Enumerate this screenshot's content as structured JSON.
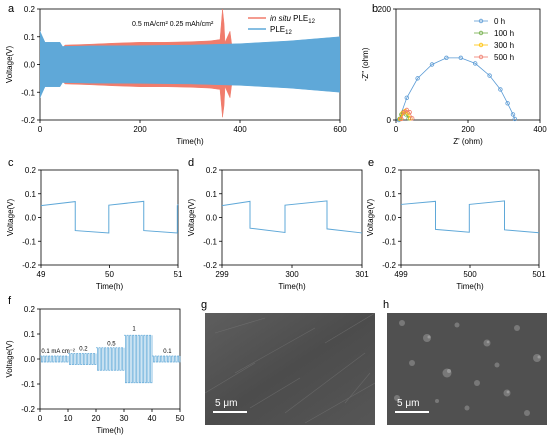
{
  "chart_data": [
    {
      "panel": "a",
      "type": "line",
      "xlabel": "Time(h)",
      "ylabel": "Voltage(V)",
      "xlim": [
        0,
        600
      ],
      "ylim": [
        -0.2,
        0.2
      ],
      "xticks": [
        "0",
        "200",
        "400",
        "600"
      ],
      "yticks": [
        "-0.2",
        "-0.1",
        "0.0",
        "0.1",
        "0.2"
      ],
      "annotation": "0.5 mA/cm² 0.25 mAh/cm²",
      "legend_position": "top-right",
      "series": [
        {
          "name": "in situ PLE12",
          "name_italic": "in situ",
          "name_main": "PLE",
          "name_sub": "12",
          "color": "#f07c6c",
          "envelope": {
            "x": [
              0,
              45,
              50,
              100,
              150,
              200,
              250,
              300,
              340,
              360,
              365,
              368,
              370,
              380,
              385
            ],
            "upper": [
              0.05,
              0.06,
              0.07,
              0.073,
              0.077,
              0.08,
              0.08,
              0.082,
              0.085,
              0.09,
              0.2,
              0.15,
              0.08,
              0.12,
              0.05
            ],
            "lower": [
              -0.05,
              -0.06,
              -0.07,
              -0.073,
              -0.077,
              -0.08,
              -0.08,
              -0.082,
              -0.085,
              -0.09,
              -0.19,
              -0.15,
              -0.08,
              -0.12,
              -0.05
            ]
          }
        },
        {
          "name": "PLE12",
          "name_main": "PLE",
          "name_sub": "12",
          "color": "#5fa8d8",
          "envelope": {
            "x": [
              0,
              10,
              40,
              45,
              100,
              200,
              300,
              400,
              500,
              600
            ],
            "upper": [
              0.12,
              0.08,
              0.08,
              0.065,
              0.067,
              0.068,
              0.07,
              0.075,
              0.085,
              0.1
            ],
            "lower": [
              -0.12,
              -0.08,
              -0.08,
              -0.065,
              -0.067,
              -0.068,
              -0.07,
              -0.075,
              -0.085,
              -0.1
            ]
          }
        }
      ]
    },
    {
      "panel": "b",
      "type": "scatter",
      "xlabel": "Z' (ohm)",
      "ylabel": "-Z'' (ohm)",
      "xlim": [
        0,
        400
      ],
      "ylim": [
        0,
        200
      ],
      "xticks": [
        "0",
        "200",
        "400"
      ],
      "yticks": [
        "0",
        "200"
      ],
      "legend_position": "top-right",
      "series": [
        {
          "name": "0 h",
          "color": "#5b9bd5",
          "x": [
            8,
            30,
            60,
            100,
            140,
            180,
            220,
            260,
            290,
            310,
            325,
            330
          ],
          "y": [
            0,
            40,
            75,
            100,
            112,
            112,
            102,
            80,
            55,
            30,
            10,
            2
          ]
        },
        {
          "name": "100 h",
          "color": "#70ad47",
          "x": [
            10,
            15,
            20,
            28,
            35
          ],
          "y": [
            2,
            10,
            14,
            10,
            3
          ]
        },
        {
          "name": "300 h",
          "color": "#ffc000",
          "x": [
            12,
            18,
            25,
            33,
            40
          ],
          "y": [
            2,
            12,
            16,
            12,
            3
          ]
        },
        {
          "name": "500 h",
          "color": "#f07c6c",
          "x": [
            15,
            22,
            30,
            38,
            45
          ],
          "y": [
            2,
            14,
            18,
            14,
            3
          ]
        }
      ]
    },
    {
      "panel": "c",
      "type": "line",
      "xlabel": "Time(h)",
      "ylabel": "Voltage(V)",
      "xlim": [
        49,
        51
      ],
      "ylim": [
        -0.2,
        0.2
      ],
      "xticks": [
        "49",
        "50",
        "51"
      ],
      "yticks": [
        "-0.2",
        "-0.1",
        "0.0",
        "0.1",
        "0.2"
      ],
      "series": [
        {
          "name": "",
          "color": "#5fa8d8",
          "x": [
            49,
            49.5,
            49.5,
            49.99,
            49.99,
            50.5,
            50.5,
            50.99,
            50.99,
            51
          ],
          "y": [
            0.05,
            0.067,
            -0.055,
            -0.065,
            0.052,
            0.068,
            -0.055,
            -0.065,
            0.05,
            0.055
          ]
        }
      ]
    },
    {
      "panel": "d",
      "type": "line",
      "xlabel": "Time(h)",
      "ylabel": "Voltage(V)",
      "xlim": [
        299,
        301
      ],
      "ylim": [
        -0.2,
        0.2
      ],
      "xticks": [
        "299",
        "300",
        "301"
      ],
      "yticks": [
        "-0.2",
        "-0.1",
        "0.0",
        "0.1",
        "0.2"
      ],
      "series": [
        {
          "name": "",
          "color": "#5fa8d8",
          "x": [
            299,
            299.4,
            299.4,
            299.9,
            299.9,
            300.5,
            300.5,
            301
          ],
          "y": [
            0.05,
            0.068,
            -0.045,
            -0.063,
            0.052,
            0.07,
            -0.048,
            -0.065
          ]
        }
      ]
    },
    {
      "panel": "e",
      "type": "line",
      "xlabel": "Time(h)",
      "ylabel": "Voltage(V)",
      "xlim": [
        499,
        501
      ],
      "ylim": [
        -0.2,
        0.2
      ],
      "xticks": [
        "499",
        "500",
        "501"
      ],
      "yticks": [
        "-0.2",
        "-0.1",
        "0.0",
        "0.1",
        "0.2"
      ],
      "series": [
        {
          "name": "",
          "color": "#5fa8d8",
          "x": [
            499,
            499.5,
            499.5,
            499.99,
            499.99,
            500.5,
            500.5,
            501
          ],
          "y": [
            0.055,
            0.068,
            -0.05,
            -0.062,
            0.055,
            0.07,
            -0.052,
            -0.064
          ]
        }
      ]
    },
    {
      "panel": "f",
      "type": "line",
      "xlabel": "Time(h)",
      "ylabel": "Voltage(V)",
      "xlim": [
        0,
        50
      ],
      "ylim": [
        -0.2,
        0.2
      ],
      "xticks": [
        "0",
        "10",
        "20",
        "30",
        "40",
        "50"
      ],
      "yticks": [
        "-0.2",
        "-0.1",
        "0.0",
        "0.1",
        "0.2"
      ],
      "annotations": [
        {
          "text": "0.1 mA cm⁻²",
          "x": 0.5,
          "y": 0.025
        },
        {
          "text": "0.2",
          "x": 14,
          "y": 0.035
        },
        {
          "text": "0.5",
          "x": 24,
          "y": 0.055
        },
        {
          "text": "1",
          "x": 33,
          "y": 0.115
        },
        {
          "text": "0.1",
          "x": 44,
          "y": 0.025
        }
      ],
      "series": [
        {
          "name": "",
          "color": "#5fa8d8",
          "segments": [
            {
              "x0": 0,
              "x1": 10,
              "amp": 0.012,
              "cycles": 10
            },
            {
              "x0": 10,
              "x1": 20,
              "amp": 0.022,
              "cycles": 10
            },
            {
              "x0": 20,
              "x1": 30,
              "amp": 0.045,
              "cycles": 10
            },
            {
              "x0": 30,
              "x1": 40,
              "amp": 0.095,
              "cycles": 10
            },
            {
              "x0": 40,
              "x1": 50,
              "amp": 0.012,
              "cycles": 10
            }
          ]
        }
      ]
    }
  ],
  "panels": {
    "a": "a",
    "b": "b",
    "c": "c",
    "d": "d",
    "e": "e",
    "f": "f",
    "g": "g",
    "h": "h"
  },
  "images": {
    "g": {
      "scale_label": "5 μm"
    },
    "h": {
      "scale_label": "5 μm"
    }
  }
}
